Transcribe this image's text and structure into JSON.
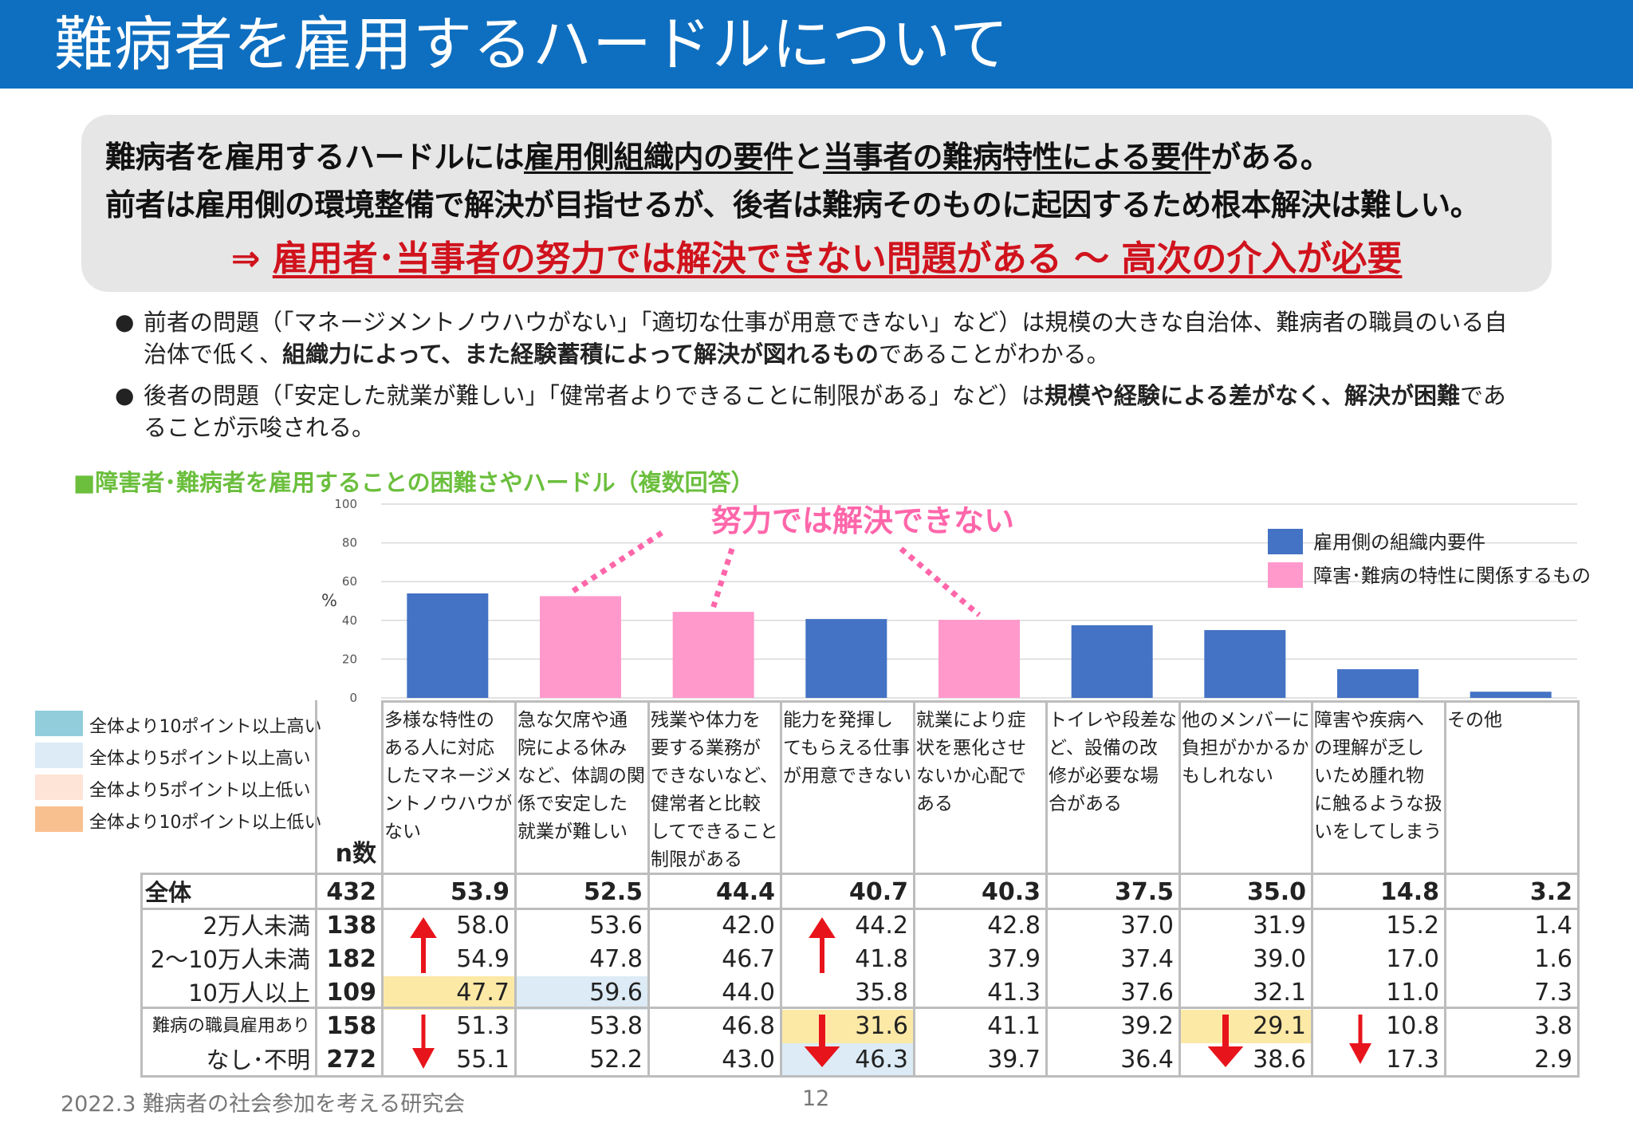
{
  "header": {
    "title": "難病者を雇用するハードルについて"
  },
  "summary": {
    "line1_a": "難病者を雇用するハードルには",
    "line1_b": "雇用側組織内の要件",
    "line1_c": "と",
    "line1_d": "当事者の難病特性による要件",
    "line1_e": "がある。",
    "line2": "前者は雇用側の環境整備で解決が目指せるが、後者は難病そのものに起因するため根本解決は難しい。",
    "conclusion_arrow": "⇒ ",
    "conclusion": "雇用者･当事者の努力では解決できない問題がある ～ 高次の介入が必要"
  },
  "bullets": [
    {
      "text_a": "前者の問題（「マネージメントノウハウがない」「適切な仕事が用意できない」など）は規模の大きな自治体、難病者の職員のいる自治体で低く、",
      "text_b": "組織力によって、また経験蓄積によって解決が図れるもの",
      "text_c": "であることがわかる。"
    },
    {
      "text_a": "後者の問題（「安定した就業が難しい」「健常者よりできることに制限がある」など）は",
      "text_b": "規模や経験による差がなく、解決が困難",
      "text_c": "であることが示唆される。"
    }
  ],
  "section_title": "■障害者･難病者を雇用することの困難さやハードル（複数回答）",
  "chart_data": {
    "type": "bar",
    "ylabel": "%",
    "ylim": [
      0,
      100
    ],
    "yticks": [
      0,
      20,
      40,
      60,
      80,
      100
    ],
    "grid": true,
    "legend_position": "top-right",
    "categories": [
      "多様な特性のある人に対応したマネージメントノウハウがない",
      "急な欠席や通院による休みなど、体調の関係で安定した就業が難しい",
      "残業や体力を要する業務ができないなど、健常者と比較してできることに制限がある",
      "能力を発揮してもらえる仕事が用意できない",
      "就業により症状を悪化させないか心配である",
      "トイレや段差など、設備の改修が必要な場合がある",
      "他のメンバーに負担がかかるかもしれない",
      "障害や疾病への理解が乏しいため腫れ物に触るような扱いをしてしまう",
      "その他"
    ],
    "values": [
      53.9,
      52.5,
      44.4,
      40.7,
      40.3,
      37.5,
      35.0,
      14.8,
      3.2
    ],
    "bar_groups": [
      "org",
      "trait",
      "trait",
      "org",
      "trait",
      "org",
      "org",
      "org",
      "org"
    ],
    "legend": [
      {
        "key": "org",
        "label": "雇用側の組織内要件",
        "color": "#4472c4"
      },
      {
        "key": "trait",
        "label": "障害･難病の特性に関係するもの",
        "color": "#ff99cc"
      }
    ],
    "annotation": "努力では解決できない",
    "annotation_color": "#ff66aa"
  },
  "table": {
    "n_header": "n数",
    "column_headers": [
      [
        "多様な特性の",
        "ある人に対応",
        "したマネージメ",
        "ントノウハウが",
        "ない"
      ],
      [
        "急な欠席や通",
        "院による休み",
        "など、体調の関",
        "係で安定した",
        "就業が難しい"
      ],
      [
        "残業や体力を",
        "要する業務が",
        "できないなど、",
        "健常者と比較",
        "してできることに",
        "制限がある"
      ],
      [
        "能力を発揮し",
        "てもらえる仕事",
        "が用意できない"
      ],
      [
        "就業により症",
        "状を悪化させ",
        "ないか心配で",
        "ある"
      ],
      [
        "トイレや段差な",
        "ど、設備の改",
        "修が必要な場",
        "合がある"
      ],
      [
        "他のメンバーに",
        "負担がかかるか",
        "もしれない"
      ],
      [
        "障害や疾病へ",
        "の理解が乏し",
        "いため腫れ物",
        "に触るような扱",
        "いをしてしまう"
      ],
      [
        "その他"
      ]
    ],
    "rows": [
      {
        "label": "全体",
        "n": "432",
        "values": [
          "53.9",
          "52.5",
          "44.4",
          "40.7",
          "40.3",
          "37.5",
          "35.0",
          "14.8",
          "3.2"
        ],
        "bold": true,
        "highlights": [
          null,
          null,
          null,
          null,
          null,
          null,
          null,
          null,
          null
        ]
      },
      {
        "label": "2万人未満",
        "n": "138",
        "values": [
          "58.0",
          "53.6",
          "42.0",
          "44.2",
          "42.8",
          "37.0",
          "31.9",
          "15.2",
          "1.4"
        ],
        "bold": false,
        "highlights": [
          null,
          null,
          null,
          null,
          null,
          null,
          null,
          null,
          null
        ]
      },
      {
        "label": "2～10万人未満",
        "n": "182",
        "values": [
          "54.9",
          "47.8",
          "46.7",
          "41.8",
          "37.9",
          "37.4",
          "39.0",
          "17.0",
          "1.6"
        ],
        "bold": false,
        "highlights": [
          null,
          null,
          null,
          null,
          null,
          null,
          null,
          null,
          null
        ]
      },
      {
        "label": "10万人以上",
        "n": "109",
        "values": [
          "47.7",
          "59.6",
          "44.0",
          "35.8",
          "41.3",
          "37.6",
          "32.1",
          "11.0",
          "7.3"
        ],
        "bold": false,
        "highlights": [
          "low5",
          "high5",
          null,
          null,
          null,
          null,
          null,
          null,
          null
        ]
      },
      {
        "label": "難病の職員雇用あり",
        "n": "158",
        "values": [
          "51.3",
          "53.8",
          "46.8",
          "31.6",
          "41.1",
          "39.2",
          "29.1",
          "10.8",
          "3.8"
        ],
        "bold": false,
        "small_label": true,
        "highlights": [
          null,
          null,
          null,
          "low5",
          null,
          null,
          "low5",
          null,
          null
        ]
      },
      {
        "label": "なし･不明",
        "n": "272",
        "values": [
          "55.1",
          "52.2",
          "43.0",
          "46.3",
          "39.7",
          "36.4",
          "38.6",
          "17.3",
          "2.9"
        ],
        "bold": false,
        "highlights": [
          null,
          null,
          null,
          "high5",
          null,
          null,
          null,
          null,
          null
        ]
      }
    ],
    "highlight_legend": [
      {
        "key": "high10",
        "label": "全体より10ポイント以上高い",
        "color": "#92cddc"
      },
      {
        "key": "high5",
        "label": "全体より5ポイント以上高い",
        "color": "#dcebf5"
      },
      {
        "key": "low5",
        "label": "全体より5ポイント以上低い",
        "color": "#fde4d6"
      },
      {
        "key": "low10",
        "label": "全体より10ポイント以上低い",
        "color": "#f9c08f"
      }
    ],
    "highlight_colors_in_table": {
      "low5": "#fde9a6",
      "high5": "#dcebf5"
    },
    "arrow_color": "#e8141b"
  },
  "footer": {
    "left": "2022.3 難病者の社会参加を考える研究会",
    "page": "12"
  }
}
